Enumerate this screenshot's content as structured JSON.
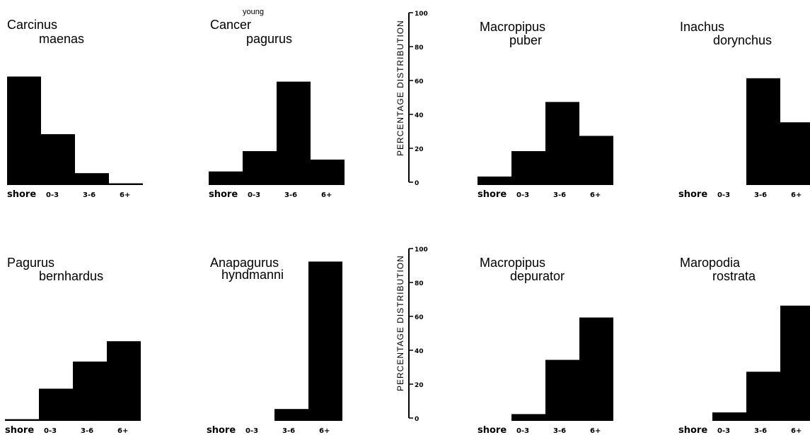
{
  "figure": {
    "y_axis_label": "PERCENTAGE  DISTRIBUTION",
    "y_ticks": [
      "0",
      "20",
      "40",
      "60",
      "80",
      "100"
    ]
  },
  "chart_data": [
    {
      "type": "bar",
      "title_line1": "Carcinus",
      "title_line2": "maenas",
      "qualifier": "",
      "categories": [
        "shore",
        "0-3",
        "3-6",
        "6+"
      ],
      "values": [
        64,
        30,
        7,
        1
      ],
      "ylim": [
        0,
        100
      ]
    },
    {
      "type": "bar",
      "title_line1": "Cancer",
      "title_line2": "pagurus",
      "qualifier": "young",
      "categories": [
        "shore",
        "0-3",
        "3-6",
        "6+"
      ],
      "values": [
        8,
        20,
        61,
        15
      ],
      "ylim": [
        0,
        100
      ]
    },
    {
      "type": "bar",
      "title_line1": "Macropipus",
      "title_line2": "puber",
      "qualifier": "",
      "categories": [
        "shore",
        "0-3",
        "3-6",
        "6+"
      ],
      "values": [
        5,
        20,
        49,
        29
      ],
      "ylim": [
        0,
        100
      ]
    },
    {
      "type": "bar",
      "title_line1": "Inachus",
      "title_line2": "dorynchus",
      "qualifier": "",
      "categories": [
        "shore",
        "0-3",
        "3-6",
        "6+"
      ],
      "values": [
        0,
        0,
        63,
        37
      ],
      "ylim": [
        0,
        100
      ]
    },
    {
      "type": "bar",
      "title_line1": "Pagurus",
      "title_line2": "bernhardus",
      "qualifier": "",
      "categories": [
        "shore",
        "0-3",
        "3-6",
        "6+"
      ],
      "values": [
        1,
        19,
        35,
        47
      ],
      "ylim": [
        0,
        100
      ]
    },
    {
      "type": "bar",
      "title_line1": "Anapagurus",
      "title_line2": "hyndmanni",
      "qualifier": "",
      "categories": [
        "shore",
        "0-3",
        "3-6",
        "6+"
      ],
      "values": [
        0,
        0,
        7,
        94
      ],
      "ylim": [
        0,
        100
      ]
    },
    {
      "type": "bar",
      "title_line1": "Macropipus",
      "title_line2": "depurator",
      "qualifier": "",
      "categories": [
        "shore",
        "0-3",
        "3-6",
        "6+"
      ],
      "values": [
        0,
        4,
        36,
        61
      ],
      "ylim": [
        0,
        100
      ]
    },
    {
      "type": "bar",
      "title_line1": "Maropodia",
      "title_line2": "rostrata",
      "qualifier": "",
      "categories": [
        "shore",
        "0-3",
        "3-6",
        "6+"
      ],
      "values": [
        0,
        5,
        29,
        68
      ],
      "ylim": [
        0,
        100
      ]
    }
  ]
}
